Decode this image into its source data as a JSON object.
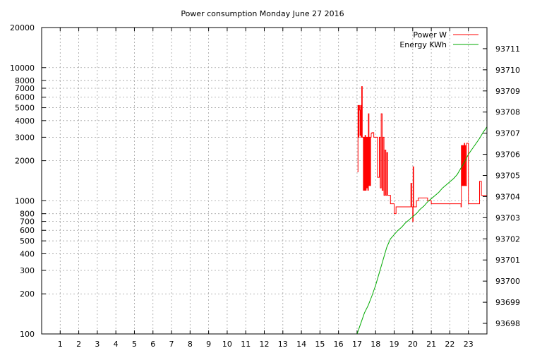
{
  "chart_data": {
    "type": "line",
    "title": "Power consumption Monday June 27 2016",
    "xlabel": "",
    "ylabel": "",
    "y2label": "",
    "x_ticks": [
      1,
      2,
      3,
      4,
      5,
      6,
      7,
      8,
      9,
      10,
      11,
      12,
      13,
      14,
      15,
      16,
      17,
      18,
      19,
      20,
      21,
      22,
      23
    ],
    "xlim": [
      0,
      24
    ],
    "y_scale": "log",
    "ylim": [
      100,
      20000
    ],
    "y_ticks": [
      100,
      200,
      300,
      400,
      500,
      600,
      700,
      800,
      1000,
      2000,
      3000,
      4000,
      5000,
      6000,
      7000,
      8000,
      10000,
      20000
    ],
    "y2lim": [
      93697.5,
      93712
    ],
    "y2_ticks": [
      93698,
      93699,
      93700,
      93701,
      93702,
      93703,
      93704,
      93705,
      93706,
      93707,
      93708,
      93709,
      93710,
      93711
    ],
    "grid": true,
    "legend_position": "top-right",
    "series": [
      {
        "name": "Power W",
        "color": "#ff0000",
        "axis": "left",
        "step": true,
        "x": [
          17.02,
          17.05,
          17.08,
          17.1,
          17.13,
          17.16,
          17.19,
          17.22,
          17.25,
          17.28,
          17.31,
          17.34,
          17.37,
          17.4,
          17.43,
          17.46,
          17.49,
          17.52,
          17.55,
          17.58,
          17.61,
          17.64,
          17.67,
          17.7,
          17.73,
          17.76,
          17.8,
          17.9,
          18.0,
          18.1,
          18.2,
          18.25,
          18.3,
          18.35,
          18.4,
          18.45,
          18.5,
          18.55,
          18.6,
          18.65,
          18.7,
          18.75,
          18.8,
          18.85,
          18.9,
          19.0,
          19.1,
          19.2,
          19.3,
          19.5,
          19.7,
          19.9,
          19.95,
          20.0,
          20.02,
          20.05,
          20.1,
          20.2,
          20.3,
          20.5,
          20.8,
          21.0,
          21.5,
          22.0,
          22.3,
          22.5,
          22.55,
          22.6,
          22.62,
          22.65,
          22.68,
          22.7,
          22.72,
          22.75,
          22.78,
          22.8,
          22.82,
          22.85,
          22.9,
          23.0,
          23.2,
          23.4,
          23.5,
          23.6,
          23.7,
          24.0
        ],
        "values": [
          1650,
          5200,
          3000,
          5200,
          4800,
          3100,
          5200,
          3000,
          7200,
          3000,
          3000,
          1200,
          3000,
          1200,
          3100,
          1200,
          3000,
          1250,
          3000,
          1200,
          4500,
          1300,
          3000,
          1300,
          3000,
          3200,
          3250,
          3000,
          3000,
          1500,
          3000,
          1250,
          4500,
          1200,
          3000,
          1100,
          2400,
          1100,
          2300,
          1100,
          1100,
          1100,
          950,
          950,
          950,
          800,
          900,
          900,
          900,
          900,
          900,
          1350,
          900,
          700,
          1800,
          900,
          900,
          1000,
          1050,
          1050,
          1000,
          950,
          950,
          950,
          950,
          950,
          950,
          900,
          2600,
          1300,
          2600,
          1300,
          2600,
          1300,
          2700,
          1300,
          2600,
          1300,
          2700,
          950,
          950,
          950,
          950,
          1400,
          1100,
          1100
        ]
      },
      {
        "name": "Energy KWh",
        "color": "#00aa00",
        "axis": "right",
        "step": false,
        "x": [
          17.0,
          17.2,
          17.4,
          17.6,
          17.8,
          18.0,
          18.2,
          18.4,
          18.6,
          18.8,
          19.0,
          19.2,
          19.4,
          19.6,
          19.8,
          20.0,
          20.2,
          20.4,
          20.6,
          20.8,
          21.0,
          21.2,
          21.4,
          21.6,
          21.8,
          22.0,
          22.2,
          22.4,
          22.6,
          22.8,
          23.0,
          23.2,
          23.4,
          23.6,
          23.8,
          24.0
        ],
        "values": [
          93697.5,
          93698.0,
          93698.5,
          93698.85,
          93699.3,
          93699.8,
          93700.4,
          93701.0,
          93701.6,
          93702.0,
          93702.2,
          93702.4,
          93702.55,
          93702.75,
          93702.9,
          93703.05,
          93703.2,
          93703.4,
          93703.55,
          93703.75,
          93703.9,
          93704.05,
          93704.2,
          93704.4,
          93704.55,
          93704.7,
          93704.85,
          93705.05,
          93705.35,
          93705.65,
          93706.0,
          93706.25,
          93706.5,
          93706.75,
          93707.05,
          93707.3
        ]
      }
    ]
  }
}
